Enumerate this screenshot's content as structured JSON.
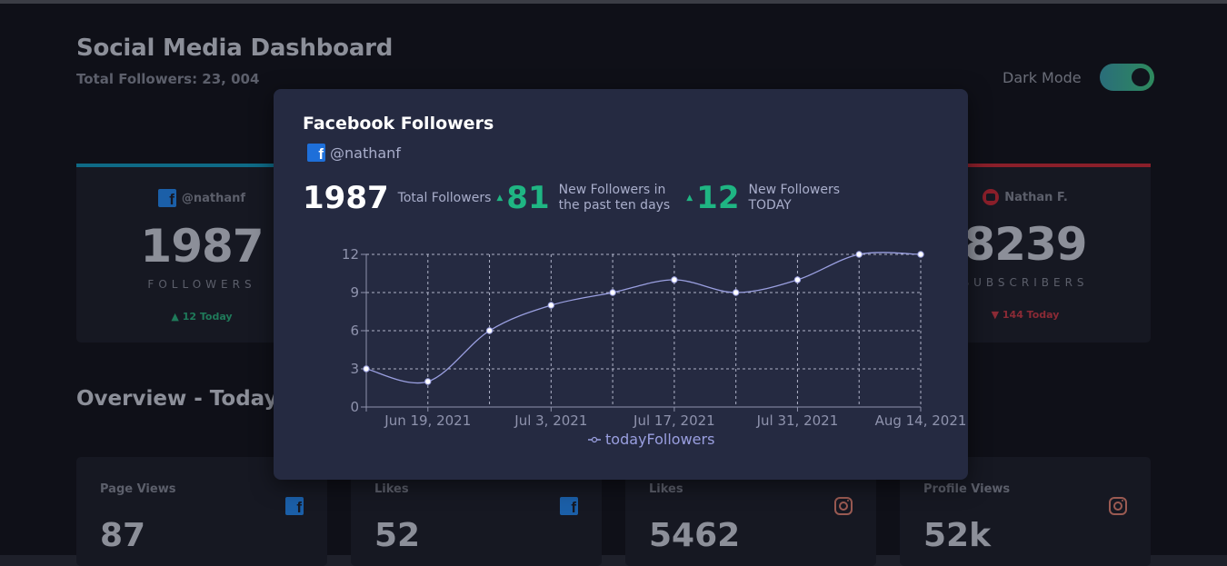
{
  "header": {
    "title": "Social Media Dashboard",
    "total_followers": "Total Followers: 23, 004"
  },
  "dark_mode": {
    "label": "Dark Mode",
    "enabled": true
  },
  "cards": [
    {
      "handle": "@nathanf",
      "icon": "facebook-icon",
      "count": "1987",
      "kind": "FOLLOWERS",
      "today": "12 Today",
      "trend": "up",
      "accent": "#0e6a86"
    },
    {
      "handle": "Nathan F.",
      "icon": "youtube-icon",
      "count": "8239",
      "kind": "SUBSCRIBERS",
      "today": "144 Today",
      "trend": "down",
      "accent": "#8a1f2a"
    }
  ],
  "overview": {
    "title": "Overview - Today",
    "items": [
      {
        "title": "Page Views",
        "value": "87",
        "icon": "facebook-icon"
      },
      {
        "title": "Likes",
        "value": "52",
        "icon": "facebook-icon"
      },
      {
        "title": "Likes",
        "value": "5462",
        "icon": "instagram-icon"
      },
      {
        "title": "Profile Views",
        "value": "52k",
        "icon": "instagram-icon"
      }
    ]
  },
  "modal": {
    "title": "Facebook Followers",
    "handle": "@nathanf",
    "total": "1987",
    "total_label": "Total Followers",
    "ten_day": "81",
    "ten_day_label_1": "New Followers in",
    "ten_day_label_2": "the past ten days",
    "today": "12",
    "today_label_1": "New Followers",
    "today_label_2": "TODAY"
  },
  "chart_data": {
    "type": "line",
    "x": [
      "2021-06-12",
      "2021-06-19",
      "2021-06-26",
      "2021-07-03",
      "2021-07-10",
      "2021-07-17",
      "2021-07-24",
      "2021-07-31",
      "2021-08-07",
      "2021-08-14"
    ],
    "series": [
      {
        "name": "todayFollowers",
        "values": [
          3,
          2,
          6,
          8,
          9,
          10,
          9,
          10,
          12,
          12
        ],
        "color": "#9a9fe0"
      }
    ],
    "xticks": [
      "Jun 19, 2021",
      "Jul 3, 2021",
      "Jul 17, 2021",
      "Jul 31, 2021",
      "Aug 14, 2021"
    ],
    "yticks": [
      0,
      3,
      6,
      9,
      12
    ],
    "ylim": [
      0,
      12
    ],
    "grid": true,
    "legend": "bottom"
  }
}
